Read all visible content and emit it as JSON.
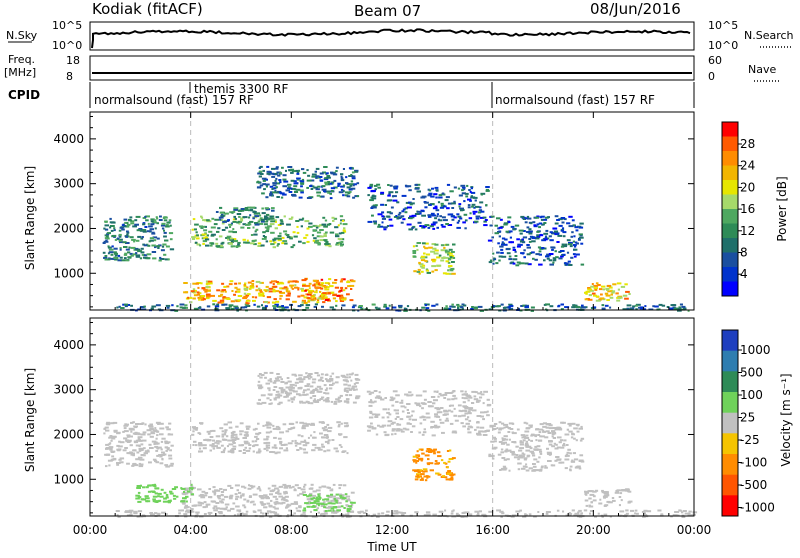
{
  "header": {
    "station": "Kodiak (fitACF)",
    "beam": "Beam 07",
    "date": "08/Jun/2016"
  },
  "status_panels": {
    "nsky_label": "N.Sky",
    "nsky_ticks": [
      "10^5",
      "10^0"
    ],
    "nsearch_label": "N.Search",
    "nsearch_ticks": [
      "10^5",
      "10^0"
    ],
    "freq_label": "Freq.",
    "freq_unit": "[MHz]",
    "freq_ticks": [
      "18",
      "8"
    ],
    "nave_label": "Nave",
    "nave_ticks": [
      "60",
      "0"
    ],
    "cpid_label": "CPID",
    "cpid_segments": [
      {
        "label": "normalsound (fast) 157 RF",
        "start_hour": 0,
        "end_hour": 16
      },
      {
        "label": "themis 3300 RF",
        "start_hour": 4,
        "end_hour": 16
      },
      {
        "label": "normalsound (fast) 157 RF",
        "start_hour": 16,
        "end_hour": 24
      }
    ]
  },
  "power_colorbar": {
    "label": "Power [dB]",
    "ticks": [
      "28",
      "24",
      "20",
      "16",
      "12",
      "8",
      "4"
    ],
    "colors": [
      "#ff0000",
      "#ff5a00",
      "#ff8c00",
      "#f2b500",
      "#e6e600",
      "#a6d96a",
      "#4fa860",
      "#2e8b57",
      "#1f6f6a",
      "#1a4fa0",
      "#0033cc",
      "#0000ff"
    ]
  },
  "velocity_colorbar": {
    "label": "Velocity [m s⁻¹]",
    "ticks": [
      "1000",
      "500",
      "100",
      "25",
      "-25",
      "-100",
      "-500",
      "-1000"
    ],
    "colors": [
      "#1f3fbf",
      "#2e7db0",
      "#2e8b57",
      "#6fd25a",
      "#c0c0c0",
      "#f5c400",
      "#ff8c00",
      "#ff5500",
      "#ff0000"
    ]
  },
  "chart_data": [
    {
      "type": "heatmap",
      "title": "Kodiak (fitACF) Beam 07 08/Jun/2016",
      "xlabel": "",
      "ylabel": "Slant Range [km]",
      "colorbar_label": "Power [dB]",
      "x_ticks": [
        "00:00",
        "04:00",
        "08:00",
        "12:00",
        "16:00",
        "20:00",
        "00:00"
      ],
      "y_ticks": [
        "1000",
        "2000",
        "3000",
        "4000"
      ],
      "xlim_hours": [
        0,
        24
      ],
      "ylim_km": [
        180,
        4600
      ],
      "clim_db": [
        0,
        32
      ],
      "features": [
        {
          "t_start": 1.0,
          "t_end": 24.0,
          "range_start": 180,
          "range_end": 330,
          "value": 8
        },
        {
          "t_start": 3.6,
          "t_end": 9.4,
          "range_start": 350,
          "range_end": 850,
          "value": 24
        },
        {
          "t_start": 8.4,
          "t_end": 10.4,
          "range_start": 400,
          "range_end": 900,
          "value": 26
        },
        {
          "t_start": 4.0,
          "t_end": 10.2,
          "range_start": 1600,
          "range_end": 2300,
          "value": 14
        },
        {
          "t_start": 5.0,
          "t_end": 7.2,
          "range_start": 2100,
          "range_end": 2500,
          "value": 10
        },
        {
          "t_start": 6.6,
          "t_end": 10.6,
          "range_start": 2700,
          "range_end": 3400,
          "value": 8
        },
        {
          "t_start": 11.0,
          "t_end": 15.8,
          "range_start": 2000,
          "range_end": 3000,
          "value": 6
        },
        {
          "t_start": 12.8,
          "t_end": 14.4,
          "range_start": 1000,
          "range_end": 1700,
          "value": 18
        },
        {
          "t_start": 0.5,
          "t_end": 3.2,
          "range_start": 1300,
          "range_end": 2300,
          "value": 10
        },
        {
          "t_start": 15.8,
          "t_end": 19.5,
          "range_start": 1200,
          "range_end": 2300,
          "value": 6
        },
        {
          "t_start": 19.6,
          "t_end": 21.4,
          "range_start": 400,
          "range_end": 800,
          "value": 22
        }
      ]
    },
    {
      "type": "heatmap",
      "title": "",
      "xlabel": "Time UT",
      "ylabel": "Slant Range [km]",
      "colorbar_label": "Velocity [m s⁻¹]",
      "x_ticks": [
        "00:00",
        "04:00",
        "08:00",
        "12:00",
        "16:00",
        "20:00",
        "00:00"
      ],
      "y_ticks": [
        "1000",
        "2000",
        "3000",
        "4000"
      ],
      "xlim_hours": [
        0,
        24
      ],
      "ylim_km": [
        180,
        4600
      ],
      "features": [
        {
          "t_start": 1.0,
          "t_end": 24.0,
          "range_start": 180,
          "range_end": 330,
          "value": 0
        },
        {
          "t_start": 3.6,
          "t_end": 10.4,
          "range_start": 350,
          "range_end": 900,
          "value": 0
        },
        {
          "t_start": 1.8,
          "t_end": 4.0,
          "range_start": 500,
          "range_end": 900,
          "value": 100
        },
        {
          "t_start": 8.4,
          "t_end": 10.4,
          "range_start": 300,
          "range_end": 700,
          "value": 100
        },
        {
          "t_start": 4.0,
          "t_end": 10.2,
          "range_start": 1600,
          "range_end": 2300,
          "value": 0
        },
        {
          "t_start": 6.6,
          "t_end": 10.6,
          "range_start": 2700,
          "range_end": 3400,
          "value": 0
        },
        {
          "t_start": 11.0,
          "t_end": 15.8,
          "range_start": 2000,
          "range_end": 3000,
          "value": 0
        },
        {
          "t_start": 12.8,
          "t_end": 14.4,
          "range_start": 1000,
          "range_end": 1700,
          "value": -300
        },
        {
          "t_start": 0.5,
          "t_end": 3.2,
          "range_start": 1300,
          "range_end": 2300,
          "value": 0
        },
        {
          "t_start": 15.8,
          "t_end": 19.5,
          "range_start": 1200,
          "range_end": 2300,
          "value": 0
        },
        {
          "t_start": 19.6,
          "t_end": 21.4,
          "range_start": 400,
          "range_end": 800,
          "value": 0
        }
      ]
    }
  ]
}
